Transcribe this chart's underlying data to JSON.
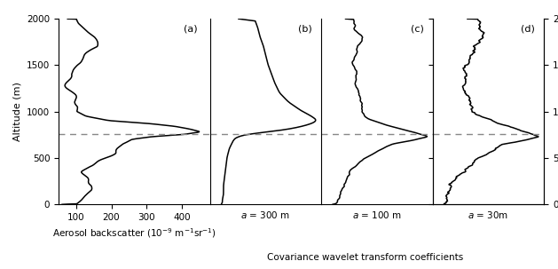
{
  "ylim": [
    0,
    2000
  ],
  "yticks": [
    0,
    500,
    1000,
    1500,
    2000
  ],
  "ylabel": "Altitude (m)",
  "dashed_line_y": 760,
  "panel_labels": [
    "(a)",
    "(b)",
    "(c)",
    "(d)"
  ],
  "panel_a_xlabel": "Aerosol backscatter ($10^{-9}$ m$^{-1}$sr$^{-1}$)",
  "panel_a_xticks": [
    100,
    200,
    300,
    400
  ],
  "panel_a_xlim": [
    50,
    480
  ],
  "panel_bcd_xlabel": "Covariance wavelet transform coefficients",
  "panel_b_label": "a = 300 m",
  "panel_c_label": "a = 100 m",
  "panel_d_label": "a = 30m",
  "line_color": "#000000",
  "dashed_color": "#888888",
  "background_color": "#ffffff",
  "figsize": [
    6.29,
    3.03
  ],
  "dpi": 100
}
